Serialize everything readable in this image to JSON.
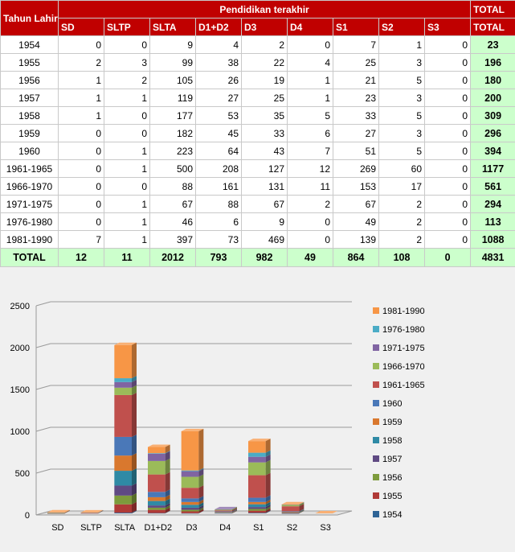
{
  "table": {
    "row_header": "Tahun Lahir",
    "group_header": "Pendidikan terakhir",
    "total_header": "TOTAL",
    "columns": [
      "SD",
      "SLTP",
      "SLTA",
      "D1+D2",
      "D3",
      "D4",
      "S1",
      "S2",
      "S3"
    ],
    "rows": [
      {
        "year": "1954",
        "vals": [
          0,
          0,
          9,
          4,
          2,
          0,
          7,
          1,
          0
        ],
        "total": "23"
      },
      {
        "year": "1955",
        "vals": [
          2,
          3,
          99,
          38,
          22,
          4,
          25,
          3,
          0
        ],
        "total": "196"
      },
      {
        "year": "1956",
        "vals": [
          1,
          2,
          105,
          26,
          19,
          1,
          21,
          5,
          0
        ],
        "total": "180"
      },
      {
        "year": "1957",
        "vals": [
          1,
          1,
          119,
          27,
          25,
          1,
          23,
          3,
          0
        ],
        "total": "200"
      },
      {
        "year": "1958",
        "vals": [
          1,
          0,
          177,
          53,
          35,
          5,
          33,
          5,
          0
        ],
        "total": "309"
      },
      {
        "year": "1959",
        "vals": [
          0,
          0,
          182,
          45,
          33,
          6,
          27,
          3,
          0
        ],
        "total": "296"
      },
      {
        "year": "1960",
        "vals": [
          0,
          1,
          223,
          64,
          43,
          7,
          51,
          5,
          0
        ],
        "total": "394"
      },
      {
        "year": "1961-1965",
        "vals": [
          0,
          1,
          500,
          208,
          127,
          12,
          269,
          60,
          0
        ],
        "total": "1177"
      },
      {
        "year": "1966-1970",
        "vals": [
          0,
          0,
          88,
          161,
          131,
          11,
          153,
          17,
          0
        ],
        "total": "561"
      },
      {
        "year": "1971-1975",
        "vals": [
          0,
          1,
          67,
          88,
          67,
          2,
          67,
          2,
          0
        ],
        "total": "294"
      },
      {
        "year": "1976-1980",
        "vals": [
          0,
          1,
          46,
          6,
          9,
          0,
          49,
          2,
          0
        ],
        "total": "113"
      },
      {
        "year": "1981-1990",
        "vals": [
          7,
          1,
          397,
          73,
          469,
          0,
          139,
          2,
          0
        ],
        "total": "1088"
      }
    ],
    "total_row": {
      "label": "TOTAL",
      "vals": [
        "12",
        "11",
        "2012",
        "793",
        "982",
        "49",
        "864",
        "108",
        "0"
      ],
      "total": "4831"
    }
  },
  "chart_data": {
    "type": "bar",
    "stacked": true,
    "categories": [
      "SD",
      "SLTP",
      "SLTA",
      "D1+D2",
      "D3",
      "D4",
      "S1",
      "S2",
      "S3"
    ],
    "ylim": [
      0,
      2500
    ],
    "yticks": [
      "0",
      "500",
      "1000",
      "1500",
      "2000",
      "2500"
    ],
    "legend_position": "right",
    "series": [
      {
        "name": "1954",
        "color": "#2e6496",
        "values": [
          0,
          0,
          9,
          4,
          2,
          0,
          7,
          1,
          0
        ]
      },
      {
        "name": "1955",
        "color": "#b03a37",
        "values": [
          2,
          3,
          99,
          38,
          22,
          4,
          25,
          3,
          0
        ]
      },
      {
        "name": "1956",
        "color": "#7d9b3c",
        "values": [
          1,
          2,
          105,
          26,
          19,
          1,
          21,
          5,
          0
        ]
      },
      {
        "name": "1957",
        "color": "#5f4a83",
        "values": [
          1,
          1,
          119,
          27,
          25,
          1,
          23,
          3,
          0
        ]
      },
      {
        "name": "1958",
        "color": "#2f8aa5",
        "values": [
          1,
          0,
          177,
          53,
          35,
          5,
          33,
          5,
          0
        ]
      },
      {
        "name": "1959",
        "color": "#d9782e",
        "values": [
          0,
          0,
          182,
          45,
          33,
          6,
          27,
          3,
          0
        ]
      },
      {
        "name": "1960",
        "color": "#4a78b8",
        "values": [
          0,
          1,
          223,
          64,
          43,
          7,
          51,
          5,
          0
        ]
      },
      {
        "name": "1961-1965",
        "color": "#c0504d",
        "values": [
          0,
          1,
          500,
          208,
          127,
          12,
          269,
          60,
          0
        ]
      },
      {
        "name": "1966-1970",
        "color": "#9bbb59",
        "values": [
          0,
          0,
          88,
          161,
          131,
          11,
          153,
          17,
          0
        ]
      },
      {
        "name": "1971-1975",
        "color": "#8064a2",
        "values": [
          0,
          1,
          67,
          88,
          67,
          2,
          67,
          2,
          0
        ]
      },
      {
        "name": "1976-1980",
        "color": "#4bacc6",
        "values": [
          0,
          1,
          46,
          6,
          9,
          0,
          49,
          2,
          0
        ]
      },
      {
        "name": "1981-1990",
        "color": "#f79646",
        "values": [
          7,
          1,
          397,
          73,
          469,
          0,
          139,
          2,
          0
        ]
      }
    ]
  }
}
